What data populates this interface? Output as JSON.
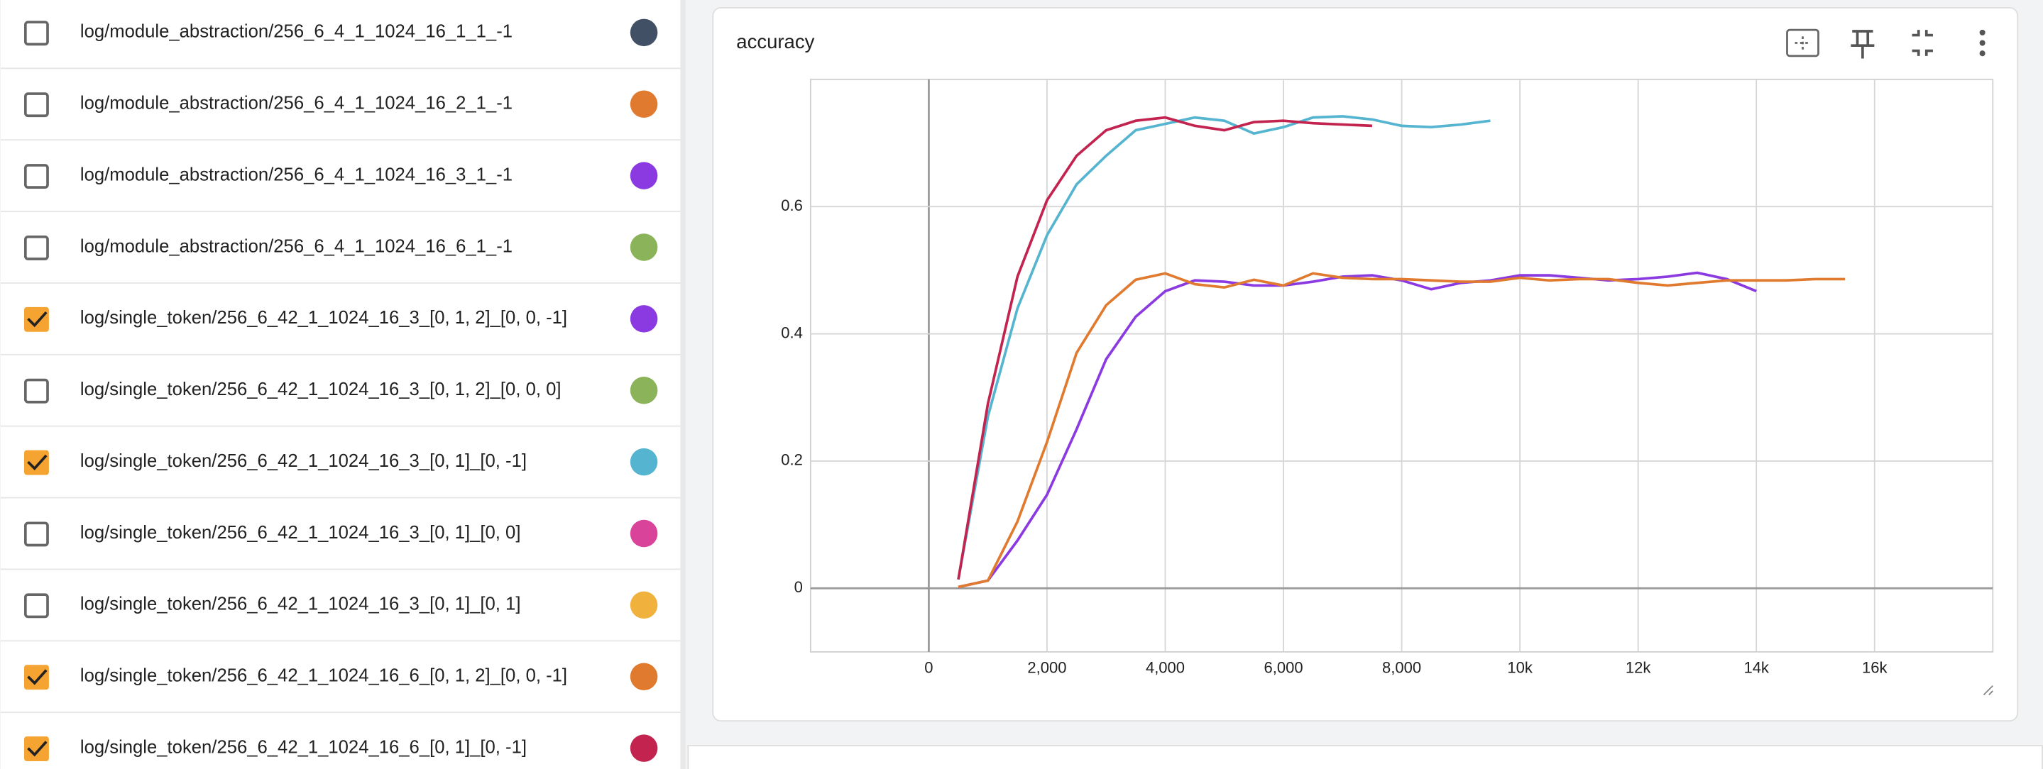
{
  "runs": [
    {
      "label": "log/module_abstraction/256_6_4_1_1024_16_1_1_-1",
      "checked": false,
      "color": "#425066"
    },
    {
      "label": "log/module_abstraction/256_6_4_1_1024_16_2_1_-1",
      "checked": false,
      "color": "#e07a2f"
    },
    {
      "label": "log/module_abstraction/256_6_4_1_1024_16_3_1_-1",
      "checked": false,
      "color": "#8a3ae0"
    },
    {
      "label": "log/module_abstraction/256_6_4_1_1024_16_6_1_-1",
      "checked": false,
      "color": "#8bb35a"
    },
    {
      "label": "log/single_token/256_6_42_1_1024_16_3_[0, 1, 2]_[0, 0, -1]",
      "checked": true,
      "color": "#8a3ae0"
    },
    {
      "label": "log/single_token/256_6_42_1_1024_16_3_[0, 1, 2]_[0, 0, 0]",
      "checked": false,
      "color": "#8bb35a"
    },
    {
      "label": "log/single_token/256_6_42_1_1024_16_3_[0, 1]_[0, -1]",
      "checked": true,
      "color": "#55b4cf"
    },
    {
      "label": "log/single_token/256_6_42_1_1024_16_3_[0, 1]_[0, 0]",
      "checked": false,
      "color": "#d9439a"
    },
    {
      "label": "log/single_token/256_6_42_1_1024_16_3_[0, 1]_[0, 1]",
      "checked": false,
      "color": "#f0b23c"
    },
    {
      "label": "log/single_token/256_6_42_1_1024_16_6_[0, 1, 2]_[0, 0, -1]",
      "checked": true,
      "color": "#e07a2f"
    },
    {
      "label": "log/single_token/256_6_42_1_1024_16_6_[0, 1]_[0, -1]",
      "checked": true,
      "color": "#c2234f"
    }
  ],
  "chart_data": {
    "type": "line",
    "title": "accuracy",
    "grid": true,
    "xlim": [
      -2000,
      18000
    ],
    "xticks": [
      0,
      {
        "value": 2000,
        "label": "2,000"
      },
      {
        "value": 4000,
        "label": "4,000"
      },
      {
        "value": 6000,
        "label": "6,000"
      },
      {
        "value": 8000,
        "label": "8,000"
      },
      {
        "value": 10000,
        "label": "10k"
      },
      {
        "value": 12000,
        "label": "12k"
      },
      {
        "value": 14000,
        "label": "14k"
      },
      {
        "value": 16000,
        "label": "16k"
      }
    ],
    "ylim": [
      -0.1,
      0.8
    ],
    "yticks": [
      0,
      0.2,
      0.4,
      0.6
    ],
    "series": [
      {
        "color": "#8a3ae0",
        "x": [
          500,
          1000,
          1500,
          2000,
          2500,
          3000,
          3500,
          4000,
          4500,
          5000,
          5500,
          6000,
          6500,
          7000,
          7500,
          8000,
          8500,
          9000,
          9500,
          10000,
          10500,
          11000,
          11500,
          12000,
          12500,
          13000,
          13500,
          14000
        ],
        "values": [
          0.002,
          0.012,
          0.075,
          0.147,
          0.25,
          0.36,
          0.427,
          0.467,
          0.484,
          0.482,
          0.476,
          0.476,
          0.482,
          0.49,
          0.492,
          0.484,
          0.47,
          0.48,
          0.484,
          0.492,
          0.492,
          0.488,
          0.484,
          0.486,
          0.49,
          0.496,
          0.486,
          0.467
        ]
      },
      {
        "color": "#55b4cf",
        "x": [
          500,
          1000,
          1500,
          2000,
          2500,
          3000,
          3500,
          4000,
          4500,
          5000,
          5500,
          6000,
          6500,
          7000,
          7500,
          8000,
          8500,
          9000,
          9500
        ],
        "values": [
          0.014,
          0.27,
          0.44,
          0.555,
          0.635,
          0.68,
          0.72,
          0.73,
          0.74,
          0.735,
          0.715,
          0.725,
          0.74,
          0.742,
          0.737,
          0.727,
          0.725,
          0.729,
          0.735
        ]
      },
      {
        "color": "#e07a2f",
        "x": [
          500,
          1000,
          1500,
          2000,
          2500,
          3000,
          3500,
          4000,
          4500,
          5000,
          5500,
          6000,
          6500,
          7000,
          7500,
          8000,
          8500,
          9000,
          9500,
          10000,
          10500,
          11000,
          11500,
          12000,
          12500,
          13000,
          13500,
          14000,
          14500,
          15000,
          15500
        ],
        "values": [
          0.002,
          0.012,
          0.105,
          0.23,
          0.37,
          0.445,
          0.485,
          0.495,
          0.478,
          0.473,
          0.485,
          0.476,
          0.495,
          0.488,
          0.486,
          0.486,
          0.484,
          0.482,
          0.482,
          0.488,
          0.484,
          0.486,
          0.486,
          0.48,
          0.476,
          0.48,
          0.484,
          0.484,
          0.484,
          0.486,
          0.486
        ]
      },
      {
        "color": "#c2234f",
        "x": [
          500,
          1000,
          1500,
          2000,
          2500,
          3000,
          3500,
          4000,
          4500,
          5000,
          5500,
          6000,
          6500,
          7000,
          7500
        ],
        "values": [
          0.014,
          0.29,
          0.49,
          0.61,
          0.68,
          0.72,
          0.735,
          0.74,
          0.727,
          0.72,
          0.733,
          0.735,
          0.731,
          0.729,
          0.727
        ]
      }
    ]
  }
}
